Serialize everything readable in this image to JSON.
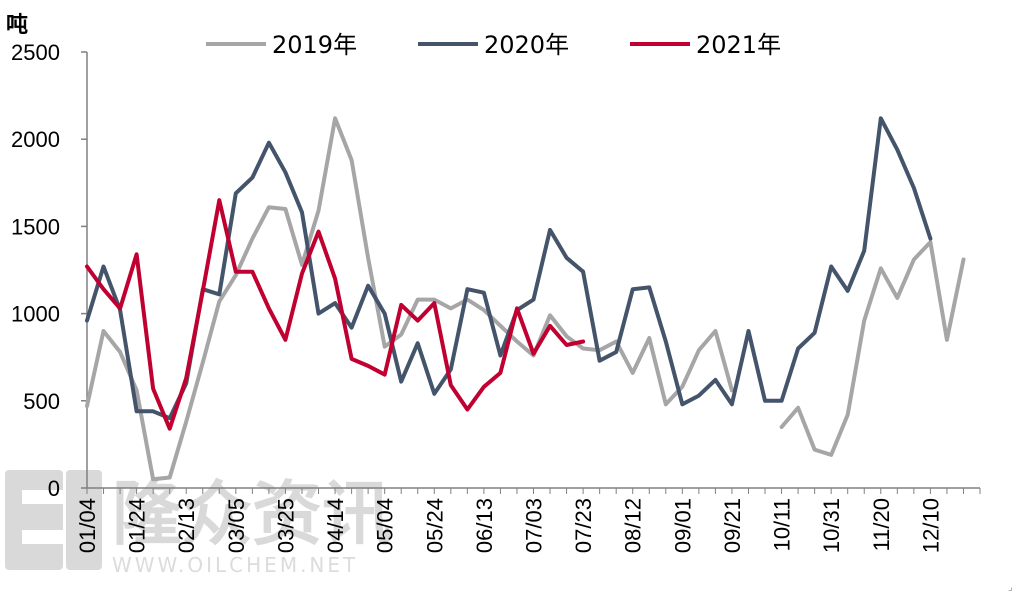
{
  "chart_data": {
    "type": "line",
    "ylabel": "吨",
    "ylim": [
      0,
      2500
    ],
    "yticks": [
      0,
      500,
      1000,
      1500,
      2000,
      2500
    ],
    "x": [
      "01/04",
      "01/11",
      "01/17",
      "01/24",
      "01/31",
      "02/07",
      "02/13",
      "02/20",
      "02/27",
      "03/05",
      "03/12",
      "03/19",
      "03/25",
      "04/01",
      "04/08",
      "04/14",
      "04/21",
      "04/28",
      "05/04",
      "05/11",
      "05/18",
      "05/24",
      "05/31",
      "06/07",
      "06/13",
      "06/20",
      "06/27",
      "07/03",
      "07/10",
      "07/17",
      "07/23",
      "07/30",
      "08/06",
      "08/12",
      "08/19",
      "08/26",
      "09/01",
      "09/08",
      "09/15",
      "09/21",
      "09/28",
      "10/05",
      "10/11",
      "10/18",
      "10/25",
      "10/31",
      "11/07",
      "11/14",
      "11/20",
      "11/27",
      "12/04",
      "12/10",
      "12/17",
      "12/24",
      "12/31"
    ],
    "xtick_labels": [
      "01/04",
      "01/24",
      "02/13",
      "03/05",
      "03/25",
      "04/14",
      "05/04",
      "05/24",
      "06/13",
      "07/03",
      "07/23",
      "08/12",
      "09/01",
      "09/21",
      "10/11",
      "10/31",
      "11/20",
      "12/10"
    ],
    "legend_position": "top",
    "series": [
      {
        "name": "2019年",
        "color": "#a6a6a6",
        "values": [
          470,
          900,
          780,
          560,
          50,
          60,
          380,
          720,
          1070,
          1220,
          1430,
          1610,
          1600,
          1280,
          1590,
          2120,
          1880,
          1320,
          810,
          880,
          1080,
          1080,
          1030,
          1080,
          1020,
          930,
          840,
          760,
          990,
          870,
          800,
          790,
          840,
          660,
          860,
          480,
          580,
          790,
          900,
          560,
          null,
          null,
          350,
          460,
          220,
          190,
          420,
          960,
          1260,
          1090,
          1310,
          1410,
          850,
          1310,
          null
        ]
      },
      {
        "name": "2020年",
        "color": "#44546a",
        "values": [
          960,
          1270,
          1020,
          440,
          440,
          400,
          600,
          1140,
          1110,
          1690,
          1780,
          1980,
          1810,
          1580,
          1000,
          1060,
          920,
          1160,
          1000,
          610,
          830,
          540,
          680,
          1140,
          1120,
          760,
          1020,
          1080,
          1480,
          1320,
          1240,
          730,
          780,
          1140,
          1150,
          840,
          480,
          530,
          620,
          480,
          900,
          500,
          500,
          800,
          890,
          1270,
          1130,
          1360,
          2120,
          1940,
          1720,
          1430,
          null,
          null,
          null
        ]
      },
      {
        "name": "2021年",
        "color": "#c00030",
        "values": [
          1270,
          1140,
          1030,
          1340,
          570,
          340,
          630,
          1130,
          1650,
          1240,
          1240,
          1030,
          850,
          1230,
          1470,
          1200,
          740,
          700,
          650,
          1050,
          960,
          1060,
          590,
          450,
          580,
          660,
          1030,
          770,
          930,
          820,
          840,
          null,
          null,
          null,
          null,
          null,
          null,
          null,
          null,
          null,
          null,
          null,
          null,
          null,
          null,
          null,
          null,
          null,
          null,
          null,
          null,
          null,
          null,
          null,
          null
        ]
      }
    ]
  },
  "watermark": {
    "brand": "隆众资讯",
    "url": "WWW.OILCHEM.NET"
  }
}
